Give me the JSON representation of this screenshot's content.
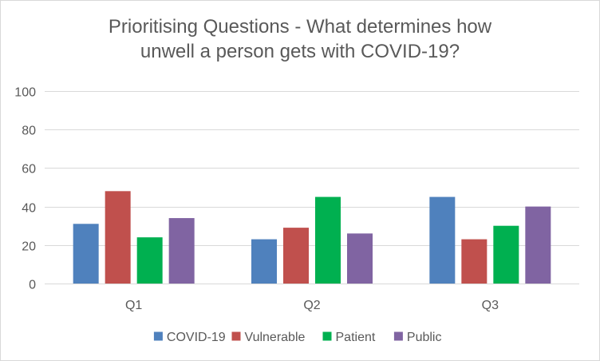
{
  "chart_data": {
    "type": "bar",
    "title_lines": [
      "Prioritising Questions - What determines how",
      "unwell a person gets with COVID-19?"
    ],
    "categories": [
      "Q1",
      "Q2",
      "Q3"
    ],
    "series": [
      {
        "name": "COVID-19",
        "color": "#4f81bd",
        "values": [
          31,
          23,
          45
        ]
      },
      {
        "name": "Vulnerable",
        "color": "#c0504d",
        "values": [
          48,
          29,
          23
        ]
      },
      {
        "name": "Patient",
        "color": "#00b050",
        "values": [
          24,
          45,
          30
        ]
      },
      {
        "name": "Public",
        "color": "#8064a2",
        "values": [
          34,
          26,
          40
        ]
      }
    ],
    "ylim": [
      0,
      100
    ],
    "yticks": [
      0,
      20,
      40,
      60,
      80,
      100
    ],
    "grid": true,
    "legend_position": "bottom",
    "xlabel": "",
    "ylabel": ""
  }
}
